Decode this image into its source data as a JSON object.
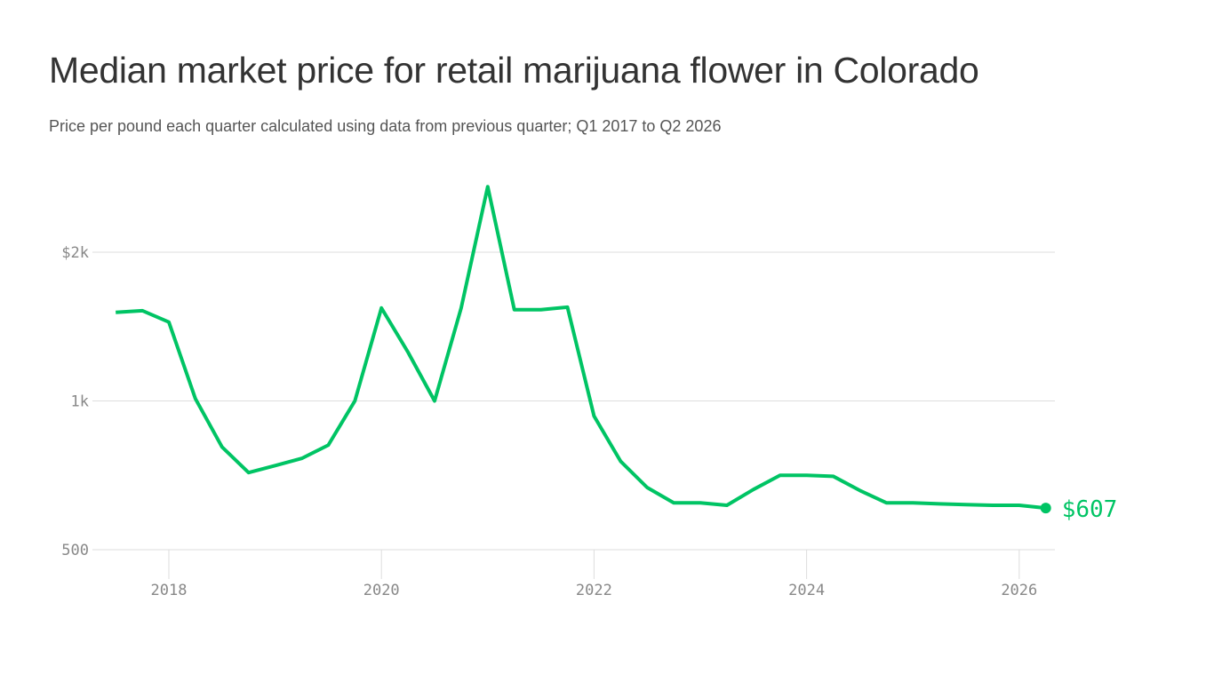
{
  "chart_data": {
    "type": "line",
    "title": "Median market price for retail marijuana flower in Colorado",
    "subtitle": "Price per pound each quarter calculated using data from previous quarter; Q1 2017 to Q2 2026",
    "xlabel": "",
    "ylabel": "",
    "y_scale": "log",
    "ylim": [
      500,
      2800
    ],
    "y_ticks": [
      {
        "value": 500,
        "label": "500"
      },
      {
        "value": 1000,
        "label": "1k"
      },
      {
        "value": 2000,
        "label": "$2k"
      }
    ],
    "x_ticks": [
      "2018",
      "2020",
      "2022",
      "2024",
      "2026"
    ],
    "grid": true,
    "line_color": "#00c464",
    "end_label": "$607",
    "x": [
      "2017-07",
      "2017-10",
      "2018-01",
      "2018-04",
      "2018-07",
      "2018-10",
      "2019-01",
      "2019-04",
      "2019-07",
      "2019-10",
      "2020-01",
      "2020-04",
      "2020-07",
      "2020-10",
      "2021-01",
      "2021-04",
      "2021-07",
      "2021-10",
      "2022-01",
      "2022-04",
      "2022-07",
      "2022-10",
      "2023-01",
      "2023-04",
      "2023-07",
      "2023-10",
      "2024-01",
      "2024-04",
      "2024-07",
      "2024-10",
      "2025-01",
      "2025-04",
      "2025-07",
      "2025-10",
      "2026-01",
      "2026-04"
    ],
    "values": [
      1511,
      1523,
      1444,
      1010,
      807,
      716,
      740,
      765,
      814,
      1000,
      1542,
      1255,
      1000,
      1542,
      2714,
      1530,
      1530,
      1548,
      932,
      755,
      668,
      622,
      622,
      615,
      662,
      707,
      707,
      704,
      659,
      622,
      622,
      619,
      617,
      615,
      615,
      607
    ]
  }
}
